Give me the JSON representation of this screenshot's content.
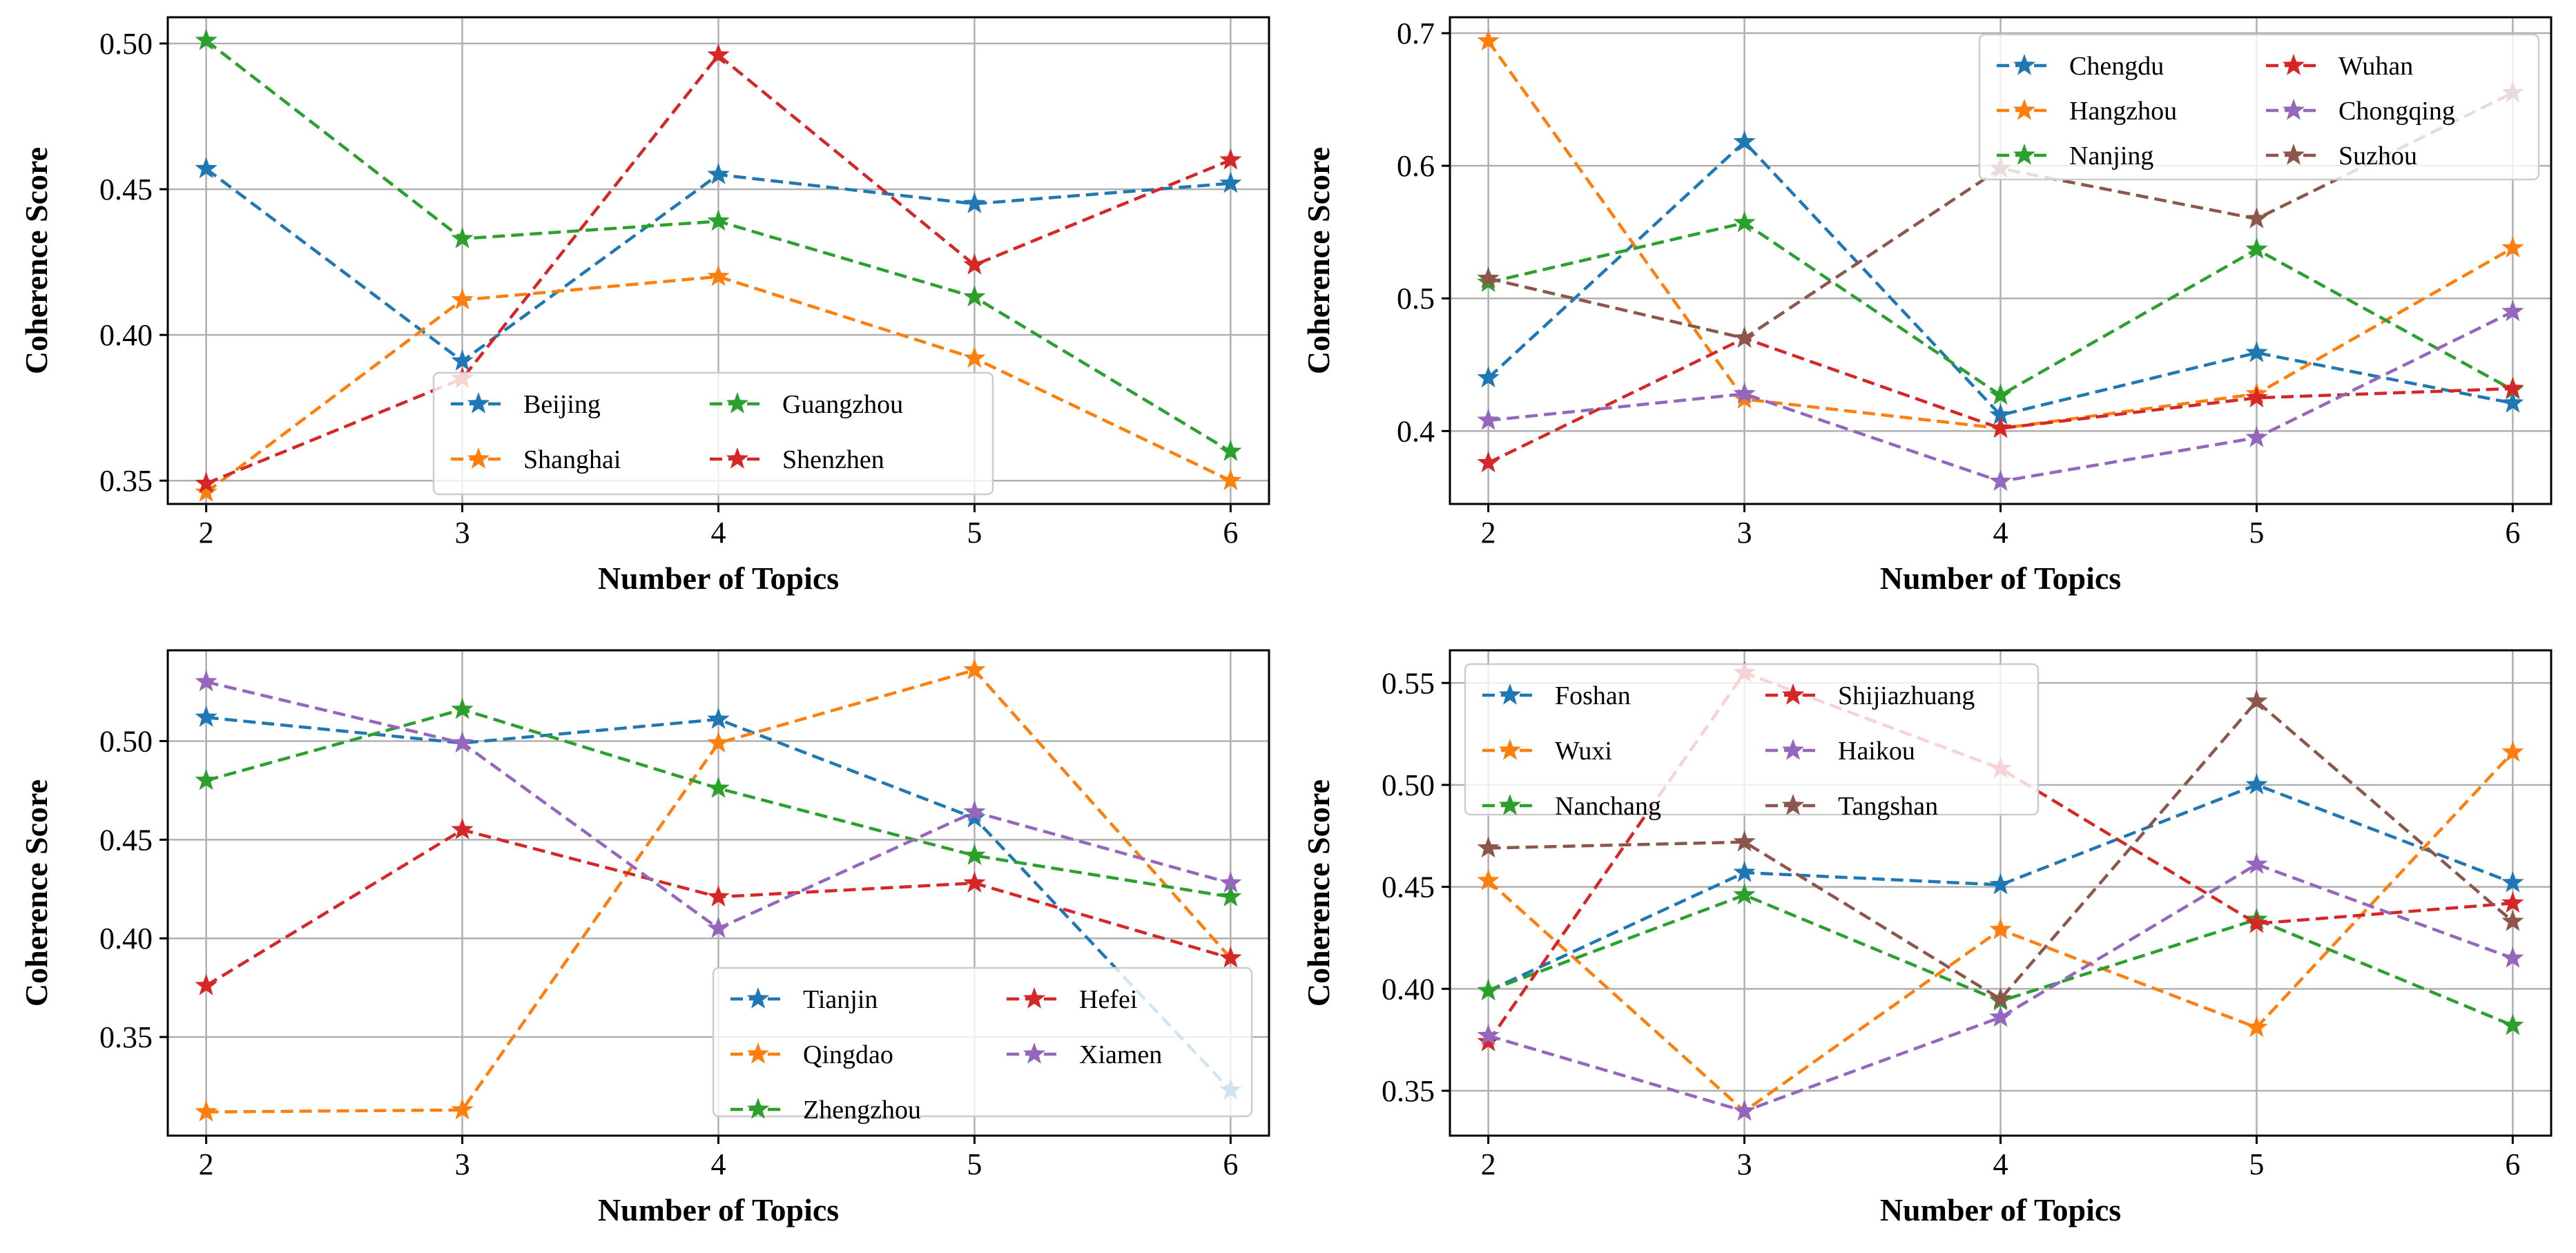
{
  "chart_data": [
    {
      "type": "line",
      "title": "",
      "xlabel": "Number of Topics",
      "ylabel": "Coherence Score",
      "x": [
        2,
        3,
        4,
        5,
        6
      ],
      "xlim": [
        1.85,
        6.15
      ],
      "ylim": [
        0.342,
        0.509
      ],
      "yticks": [
        "0.35",
        "0.40",
        "0.45",
        "0.50"
      ],
      "grid": true,
      "legend_position": "lower-center",
      "legend_columns": 2,
      "series": [
        {
          "name": "Beijing",
          "color": "#1f77b4",
          "values": [
            0.457,
            0.391,
            0.455,
            0.445,
            0.452
          ]
        },
        {
          "name": "Shanghai",
          "color": "#ff7f0e",
          "values": [
            0.346,
            0.412,
            0.42,
            0.392,
            0.35
          ]
        },
        {
          "name": "Guangzhou",
          "color": "#2ca02c",
          "values": [
            0.501,
            0.433,
            0.439,
            0.413,
            0.36
          ]
        },
        {
          "name": "Shenzhen",
          "color": "#d62728",
          "values": [
            0.349,
            0.385,
            0.496,
            0.424,
            0.46
          ]
        }
      ]
    },
    {
      "type": "line",
      "title": "",
      "xlabel": "Number of Topics",
      "ylabel": "Coherence Score",
      "x": [
        2,
        3,
        4,
        5,
        6
      ],
      "xlim": [
        1.85,
        6.15
      ],
      "ylim": [
        0.345,
        0.712
      ],
      "yticks": [
        "0.4",
        "0.5",
        "0.6",
        "0.7"
      ],
      "grid": true,
      "legend_position": "upper-right",
      "legend_columns": 2,
      "series": [
        {
          "name": "Chengdu",
          "color": "#1f77b4",
          "values": [
            0.44,
            0.618,
            0.412,
            0.459,
            0.421
          ]
        },
        {
          "name": "Hangzhou",
          "color": "#ff7f0e",
          "values": [
            0.694,
            0.424,
            0.402,
            0.428,
            0.538
          ]
        },
        {
          "name": "Nanjing",
          "color": "#2ca02c",
          "values": [
            0.512,
            0.557,
            0.427,
            0.537,
            0.431
          ]
        },
        {
          "name": "Wuhan",
          "color": "#d62728",
          "values": [
            0.376,
            0.47,
            0.402,
            0.425,
            0.432
          ]
        },
        {
          "name": "Chongqing",
          "color": "#9467bd",
          "values": [
            0.408,
            0.428,
            0.362,
            0.395,
            0.49
          ]
        },
        {
          "name": "Suzhou",
          "color": "#8c564b",
          "values": [
            0.515,
            0.47,
            0.598,
            0.56,
            0.655
          ]
        }
      ]
    },
    {
      "type": "line",
      "title": "",
      "xlabel": "Number of Topics",
      "ylabel": "Coherence Score",
      "x": [
        2,
        3,
        4,
        5,
        6
      ],
      "xlim": [
        1.85,
        6.15
      ],
      "ylim": [
        0.3,
        0.546
      ],
      "yticks": [
        "0.35",
        "0.40",
        "0.45",
        "0.50"
      ],
      "grid": true,
      "legend_position": "lower-right",
      "legend_columns": 2,
      "series": [
        {
          "name": "Tianjin",
          "color": "#1f77b4",
          "values": [
            0.512,
            0.499,
            0.511,
            0.461,
            0.323
          ]
        },
        {
          "name": "Qingdao",
          "color": "#ff7f0e",
          "values": [
            0.312,
            0.313,
            0.499,
            0.536,
            0.39
          ]
        },
        {
          "name": "Zhengzhou",
          "color": "#2ca02c",
          "values": [
            0.48,
            0.516,
            0.476,
            0.442,
            0.421
          ]
        },
        {
          "name": "Hefei",
          "color": "#d62728",
          "values": [
            0.376,
            0.455,
            0.421,
            0.428,
            0.39
          ]
        },
        {
          "name": "Xiamen",
          "color": "#9467bd",
          "values": [
            0.53,
            0.499,
            0.405,
            0.464,
            0.428
          ]
        }
      ]
    },
    {
      "type": "line",
      "title": "",
      "xlabel": "Number of Topics",
      "ylabel": "Coherence Score",
      "x": [
        2,
        3,
        4,
        5,
        6
      ],
      "xlim": [
        1.85,
        6.15
      ],
      "ylim": [
        0.328,
        0.566
      ],
      "yticks": [
        "0.35",
        "0.40",
        "0.45",
        "0.50",
        "0.55"
      ],
      "grid": true,
      "legend_position": "upper-left",
      "legend_columns": 2,
      "series": [
        {
          "name": "Foshan",
          "color": "#1f77b4",
          "values": [
            0.399,
            0.457,
            0.451,
            0.5,
            0.452
          ]
        },
        {
          "name": "Wuxi",
          "color": "#ff7f0e",
          "values": [
            0.453,
            0.34,
            0.429,
            0.381,
            0.516
          ]
        },
        {
          "name": "Nanchang",
          "color": "#2ca02c",
          "values": [
            0.399,
            0.446,
            0.394,
            0.434,
            0.382
          ]
        },
        {
          "name": "Shijiazhuang",
          "color": "#d62728",
          "values": [
            0.374,
            0.555,
            0.508,
            0.432,
            0.442
          ]
        },
        {
          "name": "Haikou",
          "color": "#9467bd",
          "values": [
            0.377,
            0.34,
            0.386,
            0.461,
            0.415
          ]
        },
        {
          "name": "Tangshan",
          "color": "#8c564b",
          "values": [
            0.469,
            0.472,
            0.395,
            0.541,
            0.433
          ]
        }
      ]
    }
  ]
}
